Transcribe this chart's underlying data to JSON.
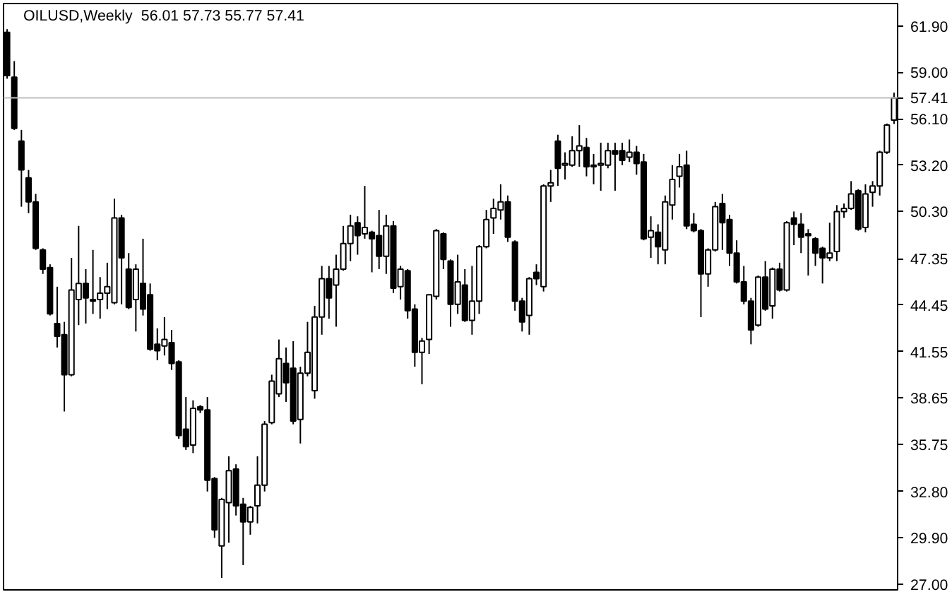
{
  "chart_data": {
    "type": "candlestick",
    "title": "OILUSD,Weekly",
    "subtitle": "56.01 57.73 55.77 57.41",
    "categories": [
      null,
      null,
      null,
      null,
      null,
      null,
      null,
      null,
      null,
      null,
      null,
      null,
      null,
      null,
      null,
      null,
      null,
      null,
      null,
      null,
      null,
      null,
      null,
      null,
      null,
      null,
      null,
      null,
      null,
      null,
      null,
      null,
      null,
      null,
      null,
      null,
      null,
      null,
      null,
      null,
      null,
      null,
      null,
      null,
      null,
      null,
      null,
      null,
      null,
      null,
      null,
      null,
      null,
      null,
      null,
      null,
      null,
      null,
      null,
      null,
      null,
      null,
      null,
      null,
      null,
      null,
      null,
      null,
      null,
      null,
      null,
      null,
      null,
      null,
      null,
      null,
      null,
      null,
      null,
      null,
      null,
      null,
      null,
      null,
      null,
      null,
      null,
      null,
      null,
      null,
      null,
      null,
      null,
      null,
      null,
      null,
      null,
      null,
      null,
      null,
      null,
      null,
      null,
      null,
      null,
      null,
      null,
      null,
      null,
      null,
      null,
      null,
      null,
      null,
      null,
      null,
      null,
      null,
      null,
      null,
      null,
      null,
      null,
      null,
      null
    ],
    "ohlc": [
      [
        61.5,
        61.7,
        58.6,
        58.8
      ],
      [
        58.7,
        59.7,
        55.4,
        55.5
      ],
      [
        54.7,
        55.4,
        50.6,
        52.9
      ],
      [
        52.4,
        52.9,
        50.2,
        50.9
      ],
      [
        50.9,
        51.4,
        47.9,
        48.0
      ],
      [
        47.9,
        48.0,
        46.4,
        46.7
      ],
      [
        46.8,
        47.0,
        43.8,
        43.9
      ],
      [
        43.3,
        45.6,
        41.8,
        42.5
      ],
      [
        42.6,
        43.4,
        37.8,
        40.1
      ],
      [
        40.1,
        47.4,
        40.0,
        45.4
      ],
      [
        44.8,
        49.4,
        43.2,
        45.8
      ],
      [
        45.8,
        46.7,
        43.3,
        44.9
      ],
      [
        44.8,
        47.9,
        43.9,
        44.7
      ],
      [
        44.8,
        46.2,
        43.6,
        45.2
      ],
      [
        45.2,
        47.1,
        44.2,
        45.6
      ],
      [
        44.6,
        51.1,
        44.5,
        49.9
      ],
      [
        49.9,
        50.1,
        44.5,
        47.4
      ],
      [
        46.7,
        47.7,
        44.2,
        44.3
      ],
      [
        44.8,
        47.0,
        42.8,
        46.7
      ],
      [
        45.8,
        48.6,
        43.8,
        44.2
      ],
      [
        45.1,
        45.8,
        41.6,
        41.7
      ],
      [
        42.0,
        43.0,
        41.0,
        41.6
      ],
      [
        41.9,
        43.7,
        41.3,
        42.3
      ],
      [
        42.1,
        42.9,
        40.4,
        40.8
      ],
      [
        40.9,
        41.0,
        36.1,
        36.3
      ],
      [
        36.7,
        38.7,
        35.4,
        35.6
      ],
      [
        35.7,
        38.5,
        35.2,
        38.0
      ],
      [
        38.1,
        38.2,
        37.7,
        37.9
      ],
      [
        37.9,
        38.7,
        32.8,
        33.5
      ],
      [
        33.6,
        33.7,
        29.9,
        30.4
      ],
      [
        29.4,
        32.4,
        27.4,
        32.3
      ],
      [
        32.1,
        35.0,
        29.6,
        34.1
      ],
      [
        34.2,
        34.5,
        31.3,
        31.9
      ],
      [
        32.0,
        32.4,
        28.2,
        30.9
      ],
      [
        30.9,
        31.9,
        30.1,
        31.8
      ],
      [
        31.9,
        35.0,
        30.8,
        33.2
      ],
      [
        33.2,
        37.2,
        32.8,
        37.0
      ],
      [
        37.1,
        40.1,
        37.0,
        39.7
      ],
      [
        38.9,
        42.3,
        38.7,
        41.1
      ],
      [
        40.8,
        41.8,
        38.4,
        39.6
      ],
      [
        40.5,
        42.2,
        37.0,
        37.2
      ],
      [
        37.3,
        40.6,
        35.8,
        40.2
      ],
      [
        40.2,
        43.4,
        40.0,
        41.5
      ],
      [
        39.1,
        44.4,
        38.6,
        43.7
      ],
      [
        43.7,
        46.9,
        42.6,
        46.1
      ],
      [
        46.1,
        46.9,
        43.6,
        44.9
      ],
      [
        45.7,
        47.6,
        43.1,
        46.7
      ],
      [
        46.7,
        49.4,
        46.6,
        48.3
      ],
      [
        48.3,
        50.1,
        47.2,
        49.4
      ],
      [
        49.6,
        50.0,
        47.6,
        48.8
      ],
      [
        48.9,
        51.9,
        48.6,
        49.3
      ],
      [
        49.0,
        49.1,
        46.5,
        48.6
      ],
      [
        48.8,
        50.4,
        46.7,
        47.5
      ],
      [
        47.5,
        50.1,
        46.4,
        49.4
      ],
      [
        49.4,
        49.7,
        45.2,
        45.5
      ],
      [
        45.6,
        46.9,
        44.8,
        46.7
      ],
      [
        46.6,
        46.7,
        43.6,
        44.1
      ],
      [
        44.2,
        44.5,
        40.6,
        41.5
      ],
      [
        41.5,
        42.4,
        39.5,
        42.2
      ],
      [
        42.3,
        45.1,
        41.4,
        45.1
      ],
      [
        45.0,
        49.2,
        44.8,
        49.1
      ],
      [
        48.9,
        49.0,
        46.7,
        47.3
      ],
      [
        47.2,
        47.3,
        43.1,
        44.5
      ],
      [
        44.5,
        47.6,
        43.9,
        45.9
      ],
      [
        45.7,
        46.7,
        43.4,
        43.5
      ],
      [
        43.5,
        46.9,
        42.6,
        44.7
      ],
      [
        44.7,
        48.2,
        43.9,
        48.1
      ],
      [
        48.1,
        50.4,
        48.0,
        49.8
      ],
      [
        49.9,
        51.1,
        48.9,
        50.5
      ],
      [
        50.4,
        52.0,
        49.8,
        50.9
      ],
      [
        50.9,
        51.3,
        48.4,
        48.7
      ],
      [
        48.4,
        48.5,
        44.1,
        44.7
      ],
      [
        44.7,
        44.9,
        42.8,
        43.4
      ],
      [
        43.8,
        46.2,
        42.6,
        46.1
      ],
      [
        46.5,
        47.0,
        45.7,
        46.1
      ],
      [
        45.6,
        52.0,
        45.3,
        51.9
      ],
      [
        51.9,
        52.9,
        50.9,
        52.1
      ],
      [
        54.7,
        55.1,
        51.9,
        53.0
      ],
      [
        53.2,
        54.0,
        52.3,
        53.3
      ],
      [
        53.2,
        55.0,
        53.1,
        54.1
      ],
      [
        54.1,
        55.7,
        53.1,
        54.4
      ],
      [
        54.3,
        54.9,
        52.5,
        53.1
      ],
      [
        53.2,
        53.9,
        52.0,
        53.1
      ],
      [
        53.2,
        54.6,
        51.6,
        53.3
      ],
      [
        53.2,
        54.6,
        53.0,
        54.1
      ],
      [
        54.1,
        54.6,
        51.6,
        53.9
      ],
      [
        54.1,
        54.6,
        53.2,
        53.5
      ],
      [
        53.7,
        54.8,
        53.4,
        54.0
      ],
      [
        54.0,
        54.4,
        52.6,
        53.3
      ],
      [
        53.4,
        53.9,
        48.5,
        48.6
      ],
      [
        48.7,
        50.0,
        47.4,
        49.1
      ],
      [
        49.0,
        49.5,
        47.0,
        48.1
      ],
      [
        47.9,
        51.3,
        47.0,
        50.9
      ],
      [
        50.7,
        53.2,
        49.8,
        52.3
      ],
      [
        52.5,
        53.9,
        51.8,
        53.1
      ],
      [
        53.2,
        54.1,
        49.2,
        49.4
      ],
      [
        49.5,
        50.2,
        49.0,
        49.1
      ],
      [
        49.1,
        49.2,
        43.7,
        46.4
      ],
      [
        46.4,
        48.0,
        45.6,
        47.9
      ],
      [
        47.9,
        50.9,
        47.8,
        50.6
      ],
      [
        50.8,
        51.4,
        47.9,
        49.6
      ],
      [
        49.8,
        50.1,
        46.9,
        47.7
      ],
      [
        47.7,
        48.5,
        45.8,
        45.9
      ],
      [
        45.9,
        46.9,
        44.5,
        44.7
      ],
      [
        44.7,
        44.9,
        42.0,
        42.9
      ],
      [
        43.2,
        46.3,
        43.1,
        46.2
      ],
      [
        46.2,
        47.2,
        44.1,
        44.2
      ],
      [
        44.4,
        46.8,
        43.6,
        46.7
      ],
      [
        46.7,
        47.1,
        45.3,
        45.4
      ],
      [
        45.4,
        49.7,
        45.3,
        49.6
      ],
      [
        49.9,
        50.3,
        48.2,
        49.5
      ],
      [
        49.5,
        50.2,
        47.7,
        48.7
      ],
      [
        48.9,
        49.2,
        46.3,
        48.8
      ],
      [
        48.6,
        48.7,
        46.9,
        47.7
      ],
      [
        48.0,
        48.1,
        45.8,
        47.4
      ],
      [
        47.4,
        49.6,
        47.2,
        47.7
      ],
      [
        47.8,
        50.7,
        47.2,
        50.3
      ],
      [
        50.3,
        50.8,
        49.9,
        50.5
      ],
      [
        50.5,
        52.2,
        50.4,
        51.4
      ],
      [
        51.6,
        51.7,
        49.1,
        49.2
      ],
      [
        49.3,
        52.0,
        49.0,
        51.4
      ],
      [
        51.5,
        52.2,
        50.6,
        51.9
      ],
      [
        51.9,
        54.1,
        51.3,
        54.0
      ],
      [
        54.0,
        55.8,
        53.9,
        55.7
      ],
      [
        56.01,
        57.73,
        55.77,
        57.41
      ]
    ],
    "ylim": [
      26.65,
      63.3
    ],
    "yticks": [
      {
        "value": 27.0,
        "label": "27.00"
      },
      {
        "value": 29.9,
        "label": "29.90"
      },
      {
        "value": 32.8,
        "label": "32.80"
      },
      {
        "value": 35.75,
        "label": "35.75"
      },
      {
        "value": 38.65,
        "label": "38.65"
      },
      {
        "value": 41.55,
        "label": "41.55"
      },
      {
        "value": 44.45,
        "label": "44.45"
      },
      {
        "value": 47.35,
        "label": "47.35"
      },
      {
        "value": 50.3,
        "label": "50.30"
      },
      {
        "value": 53.2,
        "label": "53.20"
      },
      {
        "value": 56.1,
        "label": "56.10"
      },
      {
        "value": 59.0,
        "label": "59.00"
      },
      {
        "value": 61.9,
        "label": "61.90"
      }
    ],
    "ref_lines": [
      {
        "axis": "y",
        "value": 57.41,
        "label": "57.41",
        "color": "#c0c0c0"
      }
    ],
    "tick_labels": "y",
    "grid": false
  }
}
